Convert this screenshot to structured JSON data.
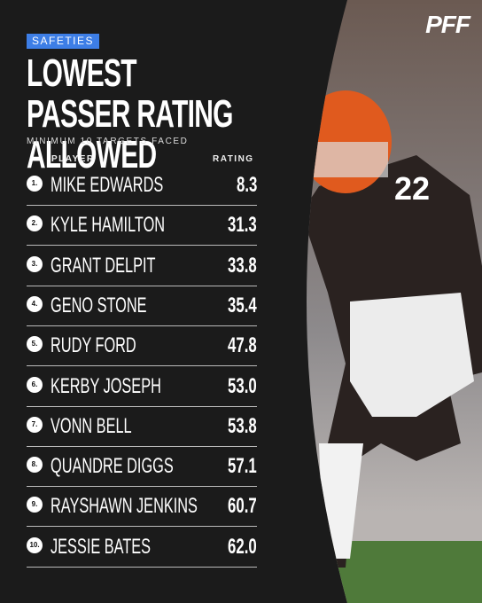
{
  "logo": "PFF",
  "tag": "SAFETIES",
  "title": "LOWEST PASSER RATING ALLOWED",
  "subtitle": "MINIMUM 10 TARGETS FACED",
  "table": {
    "headers": [
      "PLAYER",
      "RATING"
    ],
    "rows": [
      [
        "1.",
        "MIKE EDWARDS",
        "8.3"
      ],
      [
        "2.",
        "KYLE HAMILTON",
        "31.3"
      ],
      [
        "3.",
        "GRANT DELPIT",
        "33.8"
      ],
      [
        "4.",
        "GENO STONE",
        "35.4"
      ],
      [
        "5.",
        "RUDY FORD",
        "47.8"
      ],
      [
        "6.",
        "KERBY JOSEPH",
        "53.0"
      ],
      [
        "7.",
        "VONN BELL",
        "53.8"
      ],
      [
        "8.",
        "QUANDRE DIGGS",
        "57.1"
      ],
      [
        "9.",
        "RAYSHAWN JENKINS",
        "60.7"
      ],
      [
        "10.",
        "JESSIE BATES",
        "62.0"
      ]
    ]
  }
}
